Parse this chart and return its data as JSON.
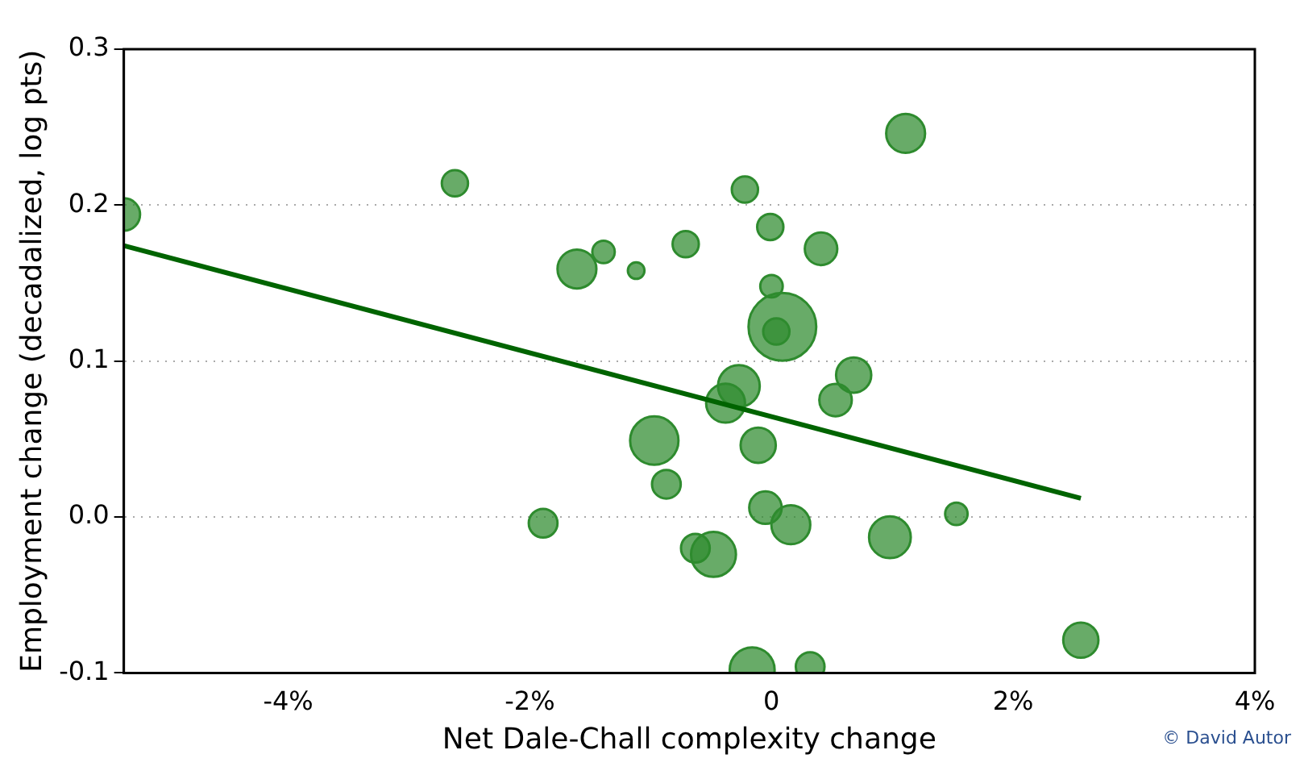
{
  "chart_data": {
    "type": "bubble",
    "xlabel": "Net Dale-Chall complexity change",
    "ylabel": "Employment change (decadalized, log pts)",
    "xlim": [
      -5.36,
      4
    ],
    "xticks": [
      {
        "value": -4,
        "label": "-4%"
      },
      {
        "value": -2,
        "label": "-2%"
      },
      0,
      {
        "value": 2,
        "label": "2%"
      },
      {
        "value": 4,
        "label": "4%"
      }
    ],
    "ylim": [
      -0.1,
      0.3
    ],
    "yticks": [
      -0.1,
      {
        "value": 0,
        "label": "0.0"
      },
      0.1,
      0.2,
      0.3
    ],
    "grid": "y",
    "legend": false,
    "annotations": [
      "© David Autor"
    ],
    "series": [
      {
        "type": "bubble",
        "color": "#2e8b2e",
        "x": [
          -5.36,
          -2.62,
          -1.61,
          -1.39,
          -1.12,
          -0.71,
          -0.22,
          -0.01,
          0.41,
          0.0,
          0.09,
          0.04,
          1.11,
          -0.27,
          -0.38,
          0.68,
          0.53,
          -0.97,
          -0.11,
          -0.87,
          -1.89,
          -0.05,
          0.16,
          -0.63,
          -0.48,
          0.98,
          1.53,
          -0.16,
          0.32,
          2.56
        ],
        "values": [
          0.194,
          0.214,
          0.159,
          0.17,
          0.158,
          0.175,
          0.21,
          0.186,
          0.172,
          0.148,
          0.122,
          0.119,
          0.246,
          0.084,
          0.073,
          0.091,
          0.075,
          0.049,
          0.046,
          0.021,
          -0.004,
          0.006,
          -0.005,
          -0.02,
          -0.024,
          -0.013,
          0.002,
          -0.098,
          -0.096,
          -0.079
        ],
        "sizes": [
          0.23,
          0.15,
          0.33,
          0.11,
          0.06,
          0.15,
          0.15,
          0.15,
          0.23,
          0.11,
          1,
          0.15,
          0.33,
          0.38,
          0.33,
          0.27,
          0.23,
          0.51,
          0.27,
          0.18,
          0.18,
          0.23,
          0.33,
          0.18,
          0.44,
          0.38,
          0.11,
          0.44,
          0.18,
          0.27
        ]
      },
      {
        "type": "line",
        "color": "#006400",
        "x": [
          -5.36,
          2.56
        ],
        "values": [
          0.174,
          0.012
        ]
      }
    ]
  }
}
